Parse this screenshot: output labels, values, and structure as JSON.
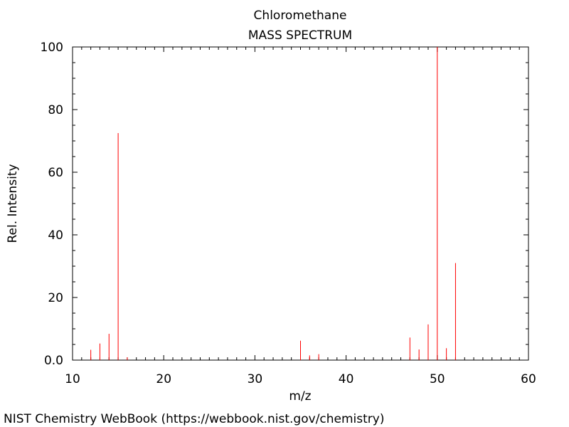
{
  "chart_data": {
    "type": "bar",
    "title": "Chloromethane",
    "subtitle": "MASS SPECTRUM",
    "xlabel": "m/z",
    "ylabel": "Rel. Intensity",
    "xlim": [
      10,
      60
    ],
    "ylim": [
      0,
      100
    ],
    "x_ticks": [
      10,
      20,
      30,
      40,
      50,
      60
    ],
    "y_ticks": [
      0,
      20,
      40,
      60,
      80,
      100
    ],
    "y_tick_labels": [
      "0.0",
      "20",
      "40",
      "60",
      "80",
      "100"
    ],
    "grid": false,
    "series": [
      {
        "color": "#ff0000",
        "points": [
          {
            "x": 12,
            "y": 3.3
          },
          {
            "x": 13,
            "y": 5.3
          },
          {
            "x": 14,
            "y": 8.4
          },
          {
            "x": 15,
            "y": 72.5
          },
          {
            "x": 16,
            "y": 0.9
          },
          {
            "x": 35,
            "y": 6.2
          },
          {
            "x": 36,
            "y": 1.5
          },
          {
            "x": 37,
            "y": 1.9
          },
          {
            "x": 47,
            "y": 7.2
          },
          {
            "x": 48,
            "y": 3.4
          },
          {
            "x": 49,
            "y": 11.4
          },
          {
            "x": 50,
            "y": 100.0
          },
          {
            "x": 51,
            "y": 3.8
          },
          {
            "x": 52,
            "y": 31.0
          }
        ]
      }
    ]
  },
  "footer": {
    "source": "NIST Chemistry WebBook (https://webbook.nist.gov/chemistry)"
  }
}
